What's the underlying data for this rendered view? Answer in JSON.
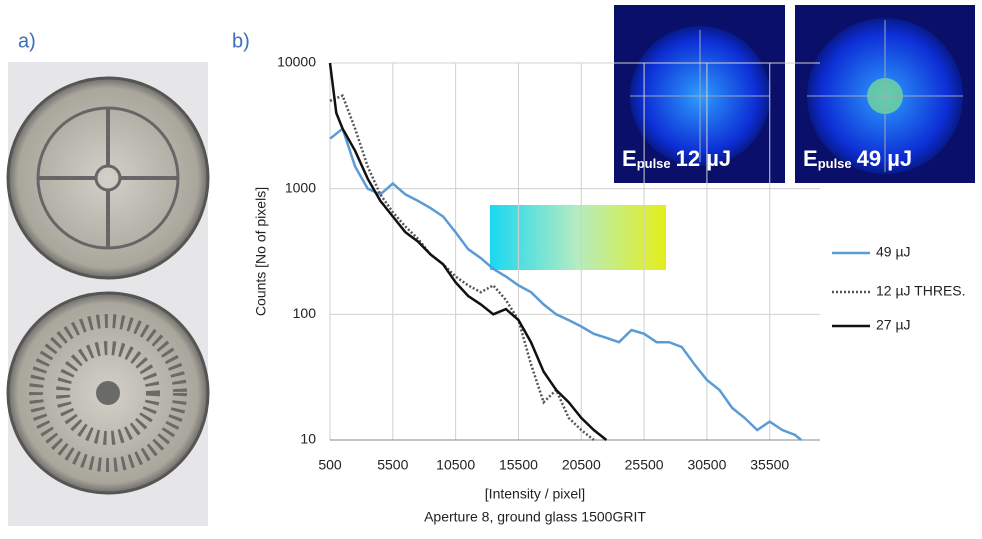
{
  "panels": {
    "a": "a)",
    "b": "b)"
  },
  "insets": [
    {
      "symbol": "E",
      "subscript": "pulse",
      "value": "12 µJ"
    },
    {
      "symbol": "E",
      "subscript": "pulse",
      "value": "49 µJ"
    }
  ],
  "chart_data": {
    "type": "line",
    "log_y": true,
    "grid": true,
    "legend": "right",
    "ylabel": "Counts [No of pixels]",
    "xlabel": "[Intensity / pixel]",
    "subtitle": "Aperture 8, ground glass 1500GRIT",
    "xlim": [
      500,
      39500
    ],
    "ylim": [
      10,
      10000
    ],
    "xticks": [
      500,
      5500,
      10500,
      15500,
      20500,
      25500,
      30500,
      35500
    ],
    "yticks": [
      10,
      100,
      1000,
      10000
    ],
    "series": [
      {
        "name": "49 µJ",
        "color": "#5b9bd5",
        "style": "solid",
        "x": [
          500,
          1500,
          2500,
          3500,
          4500,
          5500,
          6500,
          7500,
          8500,
          9500,
          10500,
          11500,
          12500,
          13500,
          14500,
          15500,
          16500,
          17500,
          18500,
          19500,
          20500,
          21500,
          22500,
          23500,
          24500,
          25500,
          26500,
          27500,
          28500,
          29500,
          30500,
          31500,
          32500,
          33500,
          34500,
          35500,
          36500,
          37500,
          38000
        ],
        "values": [
          2500,
          3000,
          1500,
          1000,
          900,
          1100,
          900,
          800,
          700,
          600,
          450,
          330,
          280,
          230,
          200,
          170,
          150,
          120,
          100,
          90,
          80,
          70,
          65,
          60,
          75,
          70,
          60,
          60,
          55,
          40,
          30,
          25,
          18,
          15,
          12,
          14,
          12,
          11,
          10
        ]
      },
      {
        "name": "12 µJ THRES.",
        "color": "#555555",
        "style": "dotted",
        "x": [
          500,
          1500,
          2500,
          3500,
          4500,
          5500,
          6500,
          7500,
          8500,
          9500,
          10500,
          11500,
          12500,
          13500,
          14500,
          15500,
          16500,
          17500,
          18500,
          19500,
          20500,
          21500
        ],
        "values": [
          5000,
          5500,
          3000,
          1500,
          900,
          650,
          500,
          400,
          300,
          250,
          200,
          170,
          150,
          170,
          130,
          90,
          40,
          20,
          25,
          15,
          12,
          10
        ]
      },
      {
        "name": "27 µJ",
        "color": "#111111",
        "style": "solid",
        "x": [
          500,
          1000,
          1500,
          2500,
          3500,
          4500,
          5500,
          6500,
          7500,
          8500,
          9500,
          10500,
          11500,
          12500,
          13500,
          14500,
          15500,
          16500,
          17500,
          18500,
          19500,
          20500,
          21500,
          22500
        ],
        "values": [
          10000,
          4000,
          3000,
          2000,
          1200,
          800,
          600,
          450,
          380,
          300,
          250,
          180,
          140,
          120,
          100,
          110,
          90,
          60,
          35,
          25,
          20,
          15,
          12,
          10
        ]
      }
    ]
  }
}
